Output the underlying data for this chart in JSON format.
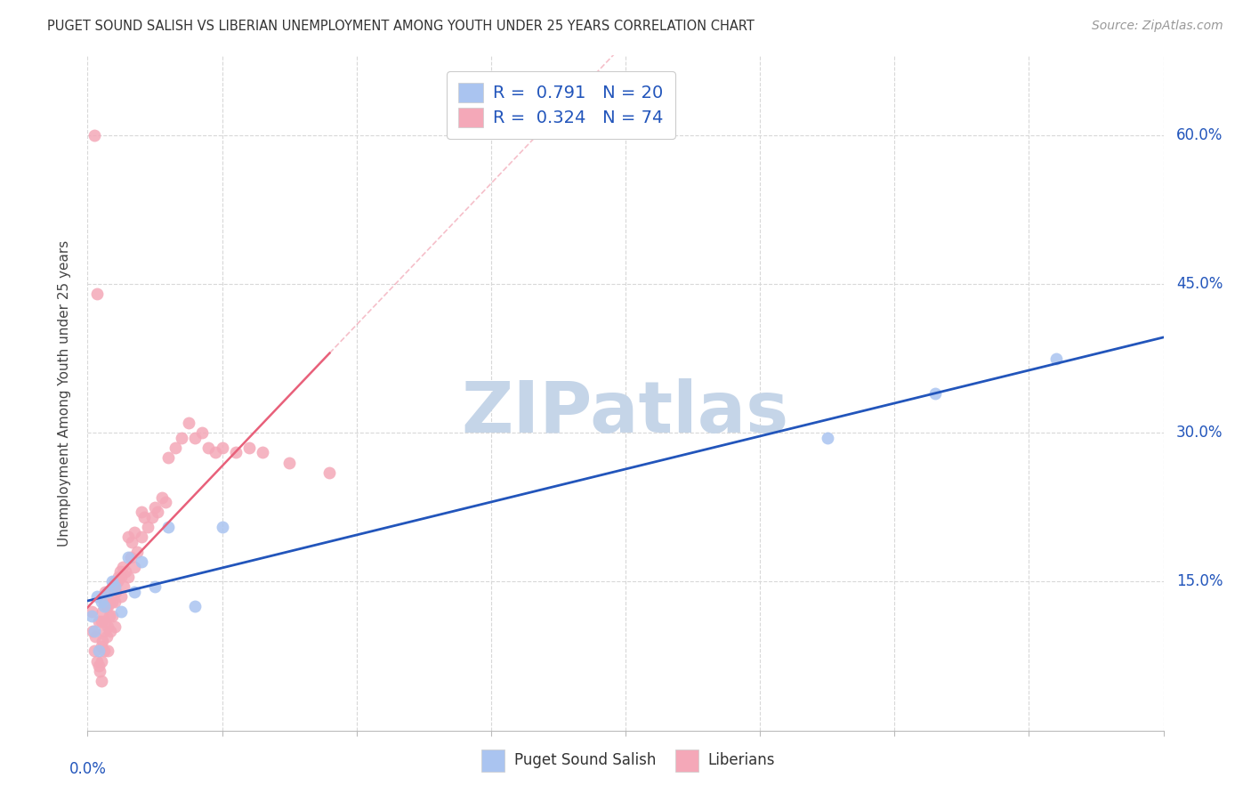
{
  "title": "PUGET SOUND SALISH VS LIBERIAN UNEMPLOYMENT AMONG YOUTH UNDER 25 YEARS CORRELATION CHART",
  "source": "Source: ZipAtlas.com",
  "ylabel": "Unemployment Among Youth under 25 years",
  "xlim": [
    0.0,
    0.8
  ],
  "ylim": [
    0.0,
    0.68
  ],
  "ytick_positions": [
    0.15,
    0.3,
    0.45,
    0.6
  ],
  "ytick_labels": [
    "15.0%",
    "30.0%",
    "45.0%",
    "60.0%"
  ],
  "blue_color": "#aac4f0",
  "pink_color": "#f4a8b8",
  "blue_line_color": "#2255bb",
  "pink_line_color": "#e8607a",
  "grid_color": "#d8d8d8",
  "watermark": "ZIPatlas",
  "watermark_color": "#c5d5e8",
  "background_color": "#ffffff",
  "pss_x": [
    0.003,
    0.005,
    0.007,
    0.008,
    0.01,
    0.012,
    0.015,
    0.018,
    0.02,
    0.025,
    0.03,
    0.035,
    0.04,
    0.05,
    0.06,
    0.08,
    0.1,
    0.55,
    0.63,
    0.72
  ],
  "pss_y": [
    0.115,
    0.1,
    0.135,
    0.08,
    0.13,
    0.125,
    0.14,
    0.15,
    0.145,
    0.12,
    0.175,
    0.14,
    0.17,
    0.145,
    0.205,
    0.125,
    0.205,
    0.295,
    0.34,
    0.375
  ],
  "lib_x": [
    0.003,
    0.004,
    0.005,
    0.005,
    0.006,
    0.007,
    0.007,
    0.008,
    0.008,
    0.009,
    0.01,
    0.01,
    0.01,
    0.01,
    0.011,
    0.011,
    0.012,
    0.012,
    0.012,
    0.013,
    0.013,
    0.014,
    0.014,
    0.015,
    0.015,
    0.015,
    0.016,
    0.016,
    0.017,
    0.018,
    0.018,
    0.019,
    0.02,
    0.02,
    0.02,
    0.021,
    0.022,
    0.023,
    0.024,
    0.025,
    0.025,
    0.026,
    0.027,
    0.028,
    0.03,
    0.03,
    0.032,
    0.033,
    0.035,
    0.035,
    0.037,
    0.04,
    0.04,
    0.042,
    0.045,
    0.048,
    0.05,
    0.052,
    0.055,
    0.058,
    0.06,
    0.065,
    0.07,
    0.075,
    0.08,
    0.085,
    0.09,
    0.095,
    0.1,
    0.11,
    0.12,
    0.13,
    0.15,
    0.18
  ],
  "lib_y": [
    0.12,
    0.1,
    0.6,
    0.08,
    0.095,
    0.44,
    0.07,
    0.065,
    0.11,
    0.06,
    0.05,
    0.07,
    0.085,
    0.11,
    0.09,
    0.12,
    0.1,
    0.13,
    0.08,
    0.11,
    0.14,
    0.095,
    0.125,
    0.08,
    0.105,
    0.125,
    0.115,
    0.13,
    0.1,
    0.13,
    0.115,
    0.145,
    0.13,
    0.15,
    0.105,
    0.14,
    0.15,
    0.155,
    0.16,
    0.155,
    0.135,
    0.165,
    0.145,
    0.16,
    0.155,
    0.195,
    0.175,
    0.19,
    0.165,
    0.2,
    0.18,
    0.195,
    0.22,
    0.215,
    0.205,
    0.215,
    0.225,
    0.22,
    0.235,
    0.23,
    0.275,
    0.285,
    0.295,
    0.31,
    0.295,
    0.3,
    0.285,
    0.28,
    0.285,
    0.28,
    0.285,
    0.28,
    0.27,
    0.26
  ]
}
